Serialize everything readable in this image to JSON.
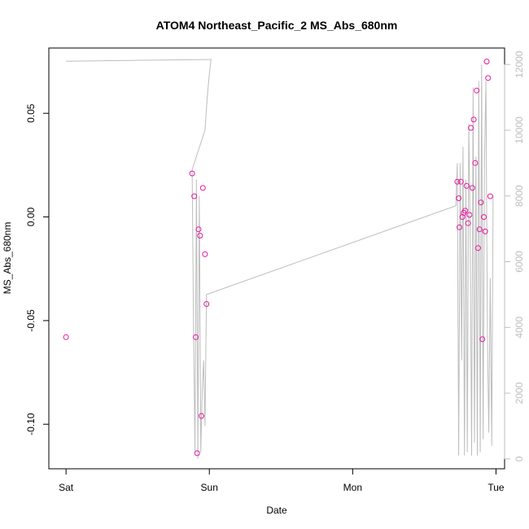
{
  "chart_data": {
    "type": "scatter",
    "title": "ATOM4 Northeast_Pacific_2 MS_Abs_680nm",
    "xlabel": "Date",
    "ylabel": "MS_Abs_680nm",
    "y2label": "",
    "x_ticks": [
      {
        "x": 0,
        "label": "Sat"
      },
      {
        "x": 1,
        "label": "Sun"
      },
      {
        "x": 2,
        "label": "Mon"
      },
      {
        "x": 3,
        "label": "Tue"
      }
    ],
    "y_ticks": [
      {
        "v": 0.05,
        "label": "0.05"
      },
      {
        "v": 0.0,
        "label": "0.00"
      },
      {
        "v": -0.05,
        "label": "-0.05"
      },
      {
        "v": -0.1,
        "label": "-0.10"
      }
    ],
    "y2_ticks": [
      {
        "v": 0,
        "label": "0"
      },
      {
        "v": 2000,
        "label": "2000"
      },
      {
        "v": 4000,
        "label": "4000"
      },
      {
        "v": 6000,
        "label": "6000"
      },
      {
        "v": 8000,
        "label": "8000"
      },
      {
        "v": 10000,
        "label": "10000"
      },
      {
        "v": 12000,
        "label": "12000"
      }
    ],
    "xlim": [
      -0.12,
      3.06
    ],
    "ylim": [
      -0.1215,
      0.0815
    ],
    "y2lim": [
      -300,
      12500
    ],
    "grid": false,
    "series": [
      {
        "kind": "points",
        "color": "#e8199e",
        "x": [
          0.0,
          0.88,
          0.895,
          0.905,
          0.915,
          0.925,
          0.935,
          0.945,
          0.955,
          0.97,
          0.98,
          2.73,
          2.74,
          2.745,
          2.755,
          2.765,
          2.775,
          2.785,
          2.795,
          2.805,
          2.815,
          2.825,
          2.835,
          2.845,
          2.855,
          2.865,
          2.875,
          2.885,
          2.895,
          2.905,
          2.915,
          2.925,
          2.935,
          2.945,
          2.96
        ],
        "y": [
          -0.058,
          0.021,
          0.01,
          -0.058,
          -0.114,
          -0.006,
          -0.009,
          -0.096,
          0.014,
          -0.018,
          -0.042,
          0.017,
          0.009,
          -0.005,
          0.017,
          0.0,
          0.002,
          0.003,
          0.015,
          -0.003,
          0.001,
          0.043,
          0.014,
          0.047,
          0.026,
          0.061,
          -0.015,
          -0.006,
          0.007,
          -0.059,
          -0.0,
          -0.007,
          0.075,
          0.067,
          0.01
        ]
      },
      {
        "kind": "line",
        "axis": "right",
        "color": "#bdbdbd",
        "x": [
          0.0,
          1.0,
          1.012,
          1.0,
          0.985,
          0.97,
          0.88,
          0.89,
          0.9,
          0.91,
          0.92,
          0.93,
          0.94,
          0.95,
          0.96,
          0.97,
          0.98,
          2.72,
          2.73,
          2.74,
          2.75,
          2.76,
          2.77,
          2.78,
          2.79,
          2.8,
          2.81,
          2.82,
          2.83,
          2.84,
          2.85,
          2.86,
          2.87,
          2.88,
          2.89,
          2.9,
          2.91,
          2.92,
          2.93,
          2.94,
          2.95,
          2.96,
          2.97,
          2.98
        ],
        "y": [
          12100,
          12150,
          12150,
          11700,
          11000,
          10000,
          8800,
          3800,
          200,
          8500,
          0,
          8000,
          200,
          2000,
          3000,
          1000,
          5000,
          7700,
          9000,
          100,
          9000,
          3000,
          9500,
          100,
          8500,
          200,
          10200,
          7000,
          100,
          11300,
          500,
          9200,
          100,
          11500,
          200,
          12000,
          600,
          9000,
          11500,
          3800,
          800,
          5500,
          400,
          8000
        ]
      }
    ]
  }
}
